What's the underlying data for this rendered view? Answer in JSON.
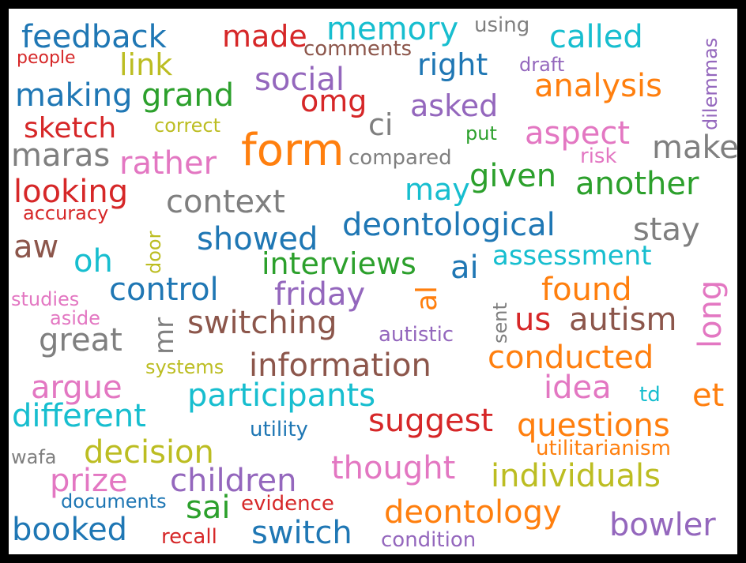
{
  "cloud": {
    "words": [
      {
        "text": "feedback",
        "color": "#1f77b4"
      },
      {
        "text": "made",
        "color": "#d62728"
      },
      {
        "text": "memory",
        "color": "#17becf"
      },
      {
        "text": "using",
        "color": "#7f7f7f"
      },
      {
        "text": "called",
        "color": "#17becf"
      },
      {
        "text": "dilemmas",
        "color": "#9467bd"
      },
      {
        "text": "people",
        "color": "#d62728"
      },
      {
        "text": "link",
        "color": "#bcbd22"
      },
      {
        "text": "comments",
        "color": "#8c564b"
      },
      {
        "text": "right",
        "color": "#1f77b4"
      },
      {
        "text": "draft",
        "color": "#9467bd"
      },
      {
        "text": "making",
        "color": "#1f77b4"
      },
      {
        "text": "grand",
        "color": "#2ca02c"
      },
      {
        "text": "social",
        "color": "#9467bd"
      },
      {
        "text": "omg",
        "color": "#d62728"
      },
      {
        "text": "analysis",
        "color": "#ff7f0e"
      },
      {
        "text": "asked",
        "color": "#9467bd"
      },
      {
        "text": "sketch",
        "color": "#d62728"
      },
      {
        "text": "correct",
        "color": "#bcbd22"
      },
      {
        "text": "ci",
        "color": "#7f7f7f"
      },
      {
        "text": "put",
        "color": "#2ca02c"
      },
      {
        "text": "aspect",
        "color": "#e377c2"
      },
      {
        "text": "maras",
        "color": "#7f7f7f"
      },
      {
        "text": "form",
        "color": "#ff7f0e"
      },
      {
        "text": "make",
        "color": "#7f7f7f"
      },
      {
        "text": "rather",
        "color": "#e377c2"
      },
      {
        "text": "compared",
        "color": "#7f7f7f"
      },
      {
        "text": "risk",
        "color": "#e377c2"
      },
      {
        "text": "looking",
        "color": "#d62728"
      },
      {
        "text": "given",
        "color": "#2ca02c"
      },
      {
        "text": "another",
        "color": "#2ca02c"
      },
      {
        "text": "may",
        "color": "#17becf"
      },
      {
        "text": "context",
        "color": "#7f7f7f"
      },
      {
        "text": "accuracy",
        "color": "#d62728"
      },
      {
        "text": "deontological",
        "color": "#1f77b4"
      },
      {
        "text": "stay",
        "color": "#7f7f7f"
      },
      {
        "text": "aw",
        "color": "#8c564b"
      },
      {
        "text": "showed",
        "color": "#1f77b4"
      },
      {
        "text": "door",
        "color": "#bcbd22"
      },
      {
        "text": "assessment",
        "color": "#17becf"
      },
      {
        "text": "oh",
        "color": "#17becf"
      },
      {
        "text": "interviews",
        "color": "#2ca02c"
      },
      {
        "text": "ai",
        "color": "#1f77b4"
      },
      {
        "text": "long",
        "color": "#e377c2"
      },
      {
        "text": "control",
        "color": "#1f77b4"
      },
      {
        "text": "friday",
        "color": "#9467bd"
      },
      {
        "text": "al",
        "color": "#ff7f0e"
      },
      {
        "text": "found",
        "color": "#ff7f0e"
      },
      {
        "text": "studies",
        "color": "#e377c2"
      },
      {
        "text": "sent",
        "color": "#7f7f7f"
      },
      {
        "text": "us",
        "color": "#d62728"
      },
      {
        "text": "autism",
        "color": "#8c564b"
      },
      {
        "text": "aside",
        "color": "#e377c2"
      },
      {
        "text": "mr",
        "color": "#7f7f7f"
      },
      {
        "text": "switching",
        "color": "#8c564b"
      },
      {
        "text": "great",
        "color": "#7f7f7f"
      },
      {
        "text": "autistic",
        "color": "#9467bd"
      },
      {
        "text": "conducted",
        "color": "#ff7f0e"
      },
      {
        "text": "information",
        "color": "#8c564b"
      },
      {
        "text": "systems",
        "color": "#bcbd22"
      },
      {
        "text": "argue",
        "color": "#e377c2"
      },
      {
        "text": "idea",
        "color": "#e377c2"
      },
      {
        "text": "et",
        "color": "#ff7f0e"
      },
      {
        "text": "participants",
        "color": "#17becf"
      },
      {
        "text": "td",
        "color": "#17becf"
      },
      {
        "text": "different",
        "color": "#17becf"
      },
      {
        "text": "suggest",
        "color": "#d62728"
      },
      {
        "text": "questions",
        "color": "#ff7f0e"
      },
      {
        "text": "utility",
        "color": "#1f77b4"
      },
      {
        "text": "wafa",
        "color": "#7f7f7f"
      },
      {
        "text": "decision",
        "color": "#bcbd22"
      },
      {
        "text": "utilitarianism",
        "color": "#ff7f0e"
      },
      {
        "text": "thought",
        "color": "#e377c2"
      },
      {
        "text": "individuals",
        "color": "#bcbd22"
      },
      {
        "text": "prize",
        "color": "#e377c2"
      },
      {
        "text": "children",
        "color": "#9467bd"
      },
      {
        "text": "documents",
        "color": "#1f77b4"
      },
      {
        "text": "sai",
        "color": "#2ca02c"
      },
      {
        "text": "evidence",
        "color": "#d62728"
      },
      {
        "text": "deontology",
        "color": "#ff7f0e"
      },
      {
        "text": "bowler",
        "color": "#9467bd"
      },
      {
        "text": "booked",
        "color": "#1f77b4"
      },
      {
        "text": "recall",
        "color": "#d62728"
      },
      {
        "text": "switch",
        "color": "#1f77b4"
      },
      {
        "text": "condition",
        "color": "#9467bd"
      }
    ]
  }
}
